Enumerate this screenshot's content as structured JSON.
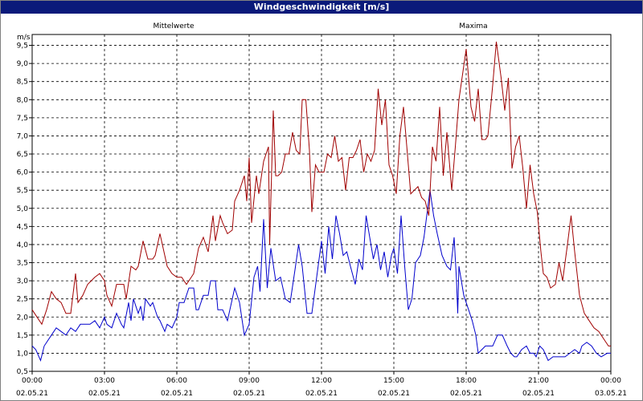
{
  "window": {
    "title": "Windgeschwindigkeit [m/s]"
  },
  "chart_data": {
    "type": "line",
    "title": "Windgeschwindigkeit [m/s]",
    "y_unit_label": "m/s",
    "ylim": [
      0.5,
      9.8
    ],
    "y_ticks": [
      0.5,
      1.0,
      1.5,
      2.0,
      2.5,
      3.0,
      3.5,
      4.0,
      4.5,
      5.0,
      5.5,
      6.0,
      6.5,
      7.0,
      7.5,
      8.0,
      8.5,
      9.0,
      9.5
    ],
    "y_tick_labels": [
      "0,5",
      "1,0",
      "1,5",
      "2,0",
      "2,5",
      "3,0",
      "3,5",
      "4,0",
      "4,5",
      "5,0",
      "5,5",
      "6,0",
      "6,5",
      "7,0",
      "7,5",
      "8,0",
      "8,5",
      "9,0",
      "9,5"
    ],
    "x_range_hours": [
      0,
      24
    ],
    "x_ticks": [
      {
        "hour": 0,
        "time": "00:00",
        "date": "02.05.21"
      },
      {
        "hour": 3,
        "time": "03:00",
        "date": "02.05.21"
      },
      {
        "hour": 6,
        "time": "06:00",
        "date": "02.05.21"
      },
      {
        "hour": 9,
        "time": "09:00",
        "date": "02.05.21"
      },
      {
        "hour": 12,
        "time": "12:00",
        "date": "02.05.21"
      },
      {
        "hour": 15,
        "time": "15:00",
        "date": "02.05.21"
      },
      {
        "hour": 18,
        "time": "18:00",
        "date": "02.05.21"
      },
      {
        "hour": 21,
        "time": "21:00",
        "date": "02.05.21"
      },
      {
        "hour": 24,
        "time": "00:00",
        "date": "03.05.21"
      }
    ],
    "grid": true,
    "series": [
      {
        "name": "Mittelwerte",
        "color": "#0000cc",
        "points": [
          [
            0.0,
            1.2
          ],
          [
            0.15,
            1.1
          ],
          [
            0.35,
            0.8
          ],
          [
            0.5,
            1.2
          ],
          [
            0.8,
            1.5
          ],
          [
            1.0,
            1.7
          ],
          [
            1.2,
            1.6
          ],
          [
            1.4,
            1.5
          ],
          [
            1.6,
            1.7
          ],
          [
            1.8,
            1.6
          ],
          [
            2.0,
            1.8
          ],
          [
            2.2,
            1.8
          ],
          [
            2.4,
            1.8
          ],
          [
            2.6,
            1.9
          ],
          [
            2.8,
            1.7
          ],
          [
            3.0,
            2.0
          ],
          [
            3.1,
            1.8
          ],
          [
            3.3,
            1.7
          ],
          [
            3.5,
            2.1
          ],
          [
            3.7,
            1.8
          ],
          [
            3.8,
            1.7
          ],
          [
            4.0,
            2.4
          ],
          [
            4.1,
            1.9
          ],
          [
            4.2,
            2.5
          ],
          [
            4.4,
            2.1
          ],
          [
            4.5,
            2.3
          ],
          [
            4.6,
            1.9
          ],
          [
            4.7,
            2.5
          ],
          [
            4.9,
            2.3
          ],
          [
            5.0,
            2.4
          ],
          [
            5.2,
            2.0
          ],
          [
            5.3,
            1.9
          ],
          [
            5.5,
            1.6
          ],
          [
            5.6,
            1.8
          ],
          [
            5.8,
            1.7
          ],
          [
            6.0,
            2.0
          ],
          [
            6.1,
            2.4
          ],
          [
            6.3,
            2.4
          ],
          [
            6.5,
            2.8
          ],
          [
            6.7,
            2.8
          ],
          [
            6.8,
            2.2
          ],
          [
            6.9,
            2.2
          ],
          [
            7.1,
            2.6
          ],
          [
            7.3,
            2.6
          ],
          [
            7.4,
            3.0
          ],
          [
            7.6,
            3.0
          ],
          [
            7.7,
            2.2
          ],
          [
            7.9,
            2.2
          ],
          [
            8.1,
            1.9
          ],
          [
            8.4,
            2.8
          ],
          [
            8.6,
            2.4
          ],
          [
            8.8,
            1.5
          ],
          [
            9.0,
            1.8
          ],
          [
            9.2,
            3.1
          ],
          [
            9.35,
            3.4
          ],
          [
            9.45,
            2.7
          ],
          [
            9.6,
            4.7
          ],
          [
            9.75,
            2.8
          ],
          [
            9.9,
            3.9
          ],
          [
            10.1,
            3.0
          ],
          [
            10.3,
            3.1
          ],
          [
            10.5,
            2.5
          ],
          [
            10.7,
            2.4
          ],
          [
            10.9,
            3.3
          ],
          [
            11.05,
            4.0
          ],
          [
            11.2,
            3.4
          ],
          [
            11.4,
            2.1
          ],
          [
            11.6,
            2.1
          ],
          [
            11.8,
            3.1
          ],
          [
            12.0,
            4.1
          ],
          [
            12.15,
            3.2
          ],
          [
            12.3,
            4.5
          ],
          [
            12.45,
            3.6
          ],
          [
            12.6,
            4.8
          ],
          [
            12.75,
            4.3
          ],
          [
            12.9,
            3.7
          ],
          [
            13.05,
            3.8
          ],
          [
            13.2,
            3.4
          ],
          [
            13.4,
            2.9
          ],
          [
            13.55,
            3.6
          ],
          [
            13.7,
            3.3
          ],
          [
            13.85,
            4.8
          ],
          [
            14.0,
            4.2
          ],
          [
            14.15,
            3.6
          ],
          [
            14.3,
            4.0
          ],
          [
            14.45,
            3.3
          ],
          [
            14.6,
            3.8
          ],
          [
            14.75,
            3.1
          ],
          [
            14.9,
            3.7
          ],
          [
            15.0,
            3.9
          ],
          [
            15.15,
            3.2
          ],
          [
            15.3,
            4.8
          ],
          [
            15.45,
            3.4
          ],
          [
            15.6,
            2.2
          ],
          [
            15.75,
            2.5
          ],
          [
            15.9,
            3.5
          ],
          [
            16.1,
            3.7
          ],
          [
            16.25,
            4.2
          ],
          [
            16.5,
            5.5
          ],
          [
            16.65,
            4.8
          ],
          [
            16.8,
            4.3
          ],
          [
            17.0,
            3.7
          ],
          [
            17.2,
            3.4
          ],
          [
            17.35,
            3.3
          ],
          [
            17.5,
            4.2
          ],
          [
            17.6,
            3.0
          ],
          [
            17.65,
            2.1
          ],
          [
            17.7,
            3.4
          ],
          [
            17.9,
            2.6
          ],
          [
            18.1,
            2.2
          ],
          [
            18.25,
            1.9
          ],
          [
            18.4,
            1.5
          ],
          [
            18.5,
            1.0
          ],
          [
            18.8,
            1.2
          ],
          [
            19.1,
            1.2
          ],
          [
            19.3,
            1.5
          ],
          [
            19.5,
            1.5
          ],
          [
            19.7,
            1.2
          ],
          [
            19.85,
            1.0
          ],
          [
            20.0,
            0.9
          ],
          [
            20.1,
            0.9
          ],
          [
            20.3,
            1.1
          ],
          [
            20.5,
            1.2
          ],
          [
            20.65,
            1.0
          ],
          [
            20.8,
            1.0
          ],
          [
            20.9,
            0.9
          ],
          [
            21.05,
            1.2
          ],
          [
            21.2,
            1.1
          ],
          [
            21.4,
            0.8
          ],
          [
            21.6,
            0.9
          ],
          [
            21.8,
            0.9
          ],
          [
            22.1,
            0.9
          ],
          [
            22.3,
            1.0
          ],
          [
            22.5,
            1.1
          ],
          [
            22.7,
            1.0
          ],
          [
            22.8,
            1.2
          ],
          [
            23.0,
            1.3
          ],
          [
            23.2,
            1.2
          ],
          [
            23.4,
            1.0
          ],
          [
            23.6,
            0.9
          ],
          [
            23.85,
            1.0
          ],
          [
            24.0,
            1.0
          ]
        ]
      },
      {
        "name": "Maxima",
        "color": "#a00000",
        "points": [
          [
            0.0,
            2.2
          ],
          [
            0.2,
            2.0
          ],
          [
            0.4,
            1.8
          ],
          [
            0.6,
            2.2
          ],
          [
            0.8,
            2.7
          ],
          [
            1.0,
            2.5
          ],
          [
            1.2,
            2.4
          ],
          [
            1.4,
            2.1
          ],
          [
            1.6,
            2.1
          ],
          [
            1.8,
            3.2
          ],
          [
            1.9,
            2.4
          ],
          [
            2.1,
            2.6
          ],
          [
            2.3,
            2.9
          ],
          [
            2.6,
            3.1
          ],
          [
            2.8,
            3.2
          ],
          [
            3.0,
            3.0
          ],
          [
            3.1,
            2.6
          ],
          [
            3.3,
            2.3
          ],
          [
            3.5,
            2.9
          ],
          [
            3.8,
            2.9
          ],
          [
            3.9,
            2.5
          ],
          [
            4.1,
            3.4
          ],
          [
            4.3,
            3.3
          ],
          [
            4.4,
            3.4
          ],
          [
            4.6,
            4.1
          ],
          [
            4.8,
            3.6
          ],
          [
            5.0,
            3.6
          ],
          [
            5.1,
            3.7
          ],
          [
            5.3,
            4.3
          ],
          [
            5.5,
            3.7
          ],
          [
            5.6,
            3.4
          ],
          [
            5.8,
            3.2
          ],
          [
            6.0,
            3.1
          ],
          [
            6.2,
            3.1
          ],
          [
            6.4,
            2.9
          ],
          [
            6.5,
            3.0
          ],
          [
            6.7,
            3.2
          ],
          [
            6.9,
            3.9
          ],
          [
            7.1,
            4.2
          ],
          [
            7.3,
            3.8
          ],
          [
            7.5,
            4.8
          ],
          [
            7.6,
            4.1
          ],
          [
            7.8,
            4.8
          ],
          [
            7.9,
            4.6
          ],
          [
            8.1,
            4.3
          ],
          [
            8.3,
            4.4
          ],
          [
            8.4,
            5.2
          ],
          [
            8.6,
            5.5
          ],
          [
            8.8,
            5.9
          ],
          [
            8.9,
            5.2
          ],
          [
            9.0,
            6.4
          ],
          [
            9.1,
            4.6
          ],
          [
            9.3,
            5.9
          ],
          [
            9.4,
            5.4
          ],
          [
            9.6,
            6.3
          ],
          [
            9.8,
            6.7
          ],
          [
            9.85,
            4.0
          ],
          [
            10.0,
            7.7
          ],
          [
            10.1,
            5.9
          ],
          [
            10.2,
            5.9
          ],
          [
            10.35,
            6.0
          ],
          [
            10.5,
            6.5
          ],
          [
            10.65,
            6.5
          ],
          [
            10.8,
            7.1
          ],
          [
            10.95,
            6.6
          ],
          [
            11.1,
            6.5
          ],
          [
            11.2,
            8.0
          ],
          [
            11.35,
            8.0
          ],
          [
            11.5,
            6.6
          ],
          [
            11.6,
            4.9
          ],
          [
            11.75,
            6.2
          ],
          [
            11.9,
            6.0
          ],
          [
            12.1,
            6.0
          ],
          [
            12.25,
            6.5
          ],
          [
            12.4,
            6.4
          ],
          [
            12.55,
            7.0
          ],
          [
            12.7,
            6.3
          ],
          [
            12.85,
            6.4
          ],
          [
            13.0,
            5.5
          ],
          [
            13.15,
            6.4
          ],
          [
            13.3,
            6.4
          ],
          [
            13.45,
            6.6
          ],
          [
            13.6,
            6.9
          ],
          [
            13.75,
            6.0
          ],
          [
            13.9,
            6.5
          ],
          [
            14.05,
            6.3
          ],
          [
            14.2,
            6.6
          ],
          [
            14.35,
            8.3
          ],
          [
            14.5,
            7.3
          ],
          [
            14.65,
            8.0
          ],
          [
            14.8,
            6.2
          ],
          [
            14.95,
            5.9
          ],
          [
            15.1,
            5.4
          ],
          [
            15.25,
            7.0
          ],
          [
            15.4,
            7.8
          ],
          [
            15.55,
            6.6
          ],
          [
            15.7,
            5.4
          ],
          [
            15.85,
            5.5
          ],
          [
            16.0,
            5.6
          ],
          [
            16.15,
            5.3
          ],
          [
            16.3,
            5.2
          ],
          [
            16.45,
            4.8
          ],
          [
            16.6,
            6.7
          ],
          [
            16.75,
            6.3
          ],
          [
            16.9,
            7.8
          ],
          [
            17.05,
            5.9
          ],
          [
            17.2,
            7.1
          ],
          [
            17.4,
            5.5
          ],
          [
            17.55,
            6.7
          ],
          [
            17.7,
            8.0
          ],
          [
            17.85,
            8.7
          ],
          [
            18.0,
            9.4
          ],
          [
            18.2,
            7.8
          ],
          [
            18.35,
            7.4
          ],
          [
            18.5,
            8.3
          ],
          [
            18.65,
            6.9
          ],
          [
            18.8,
            6.9
          ],
          [
            18.9,
            7.0
          ],
          [
            19.1,
            8.4
          ],
          [
            19.25,
            9.6
          ],
          [
            19.45,
            8.6
          ],
          [
            19.6,
            7.7
          ],
          [
            19.75,
            8.6
          ],
          [
            19.9,
            6.1
          ],
          [
            20.05,
            6.7
          ],
          [
            20.2,
            7.0
          ],
          [
            20.35,
            6.1
          ],
          [
            20.5,
            5.0
          ],
          [
            20.65,
            6.2
          ],
          [
            20.8,
            5.4
          ],
          [
            20.95,
            4.9
          ],
          [
            21.1,
            3.8
          ],
          [
            21.2,
            3.2
          ],
          [
            21.35,
            3.1
          ],
          [
            21.5,
            2.8
          ],
          [
            21.7,
            2.9
          ],
          [
            21.85,
            3.5
          ],
          [
            22.0,
            3.0
          ],
          [
            22.2,
            4.0
          ],
          [
            22.35,
            4.8
          ],
          [
            22.5,
            3.8
          ],
          [
            22.7,
            2.6
          ],
          [
            22.9,
            2.1
          ],
          [
            23.1,
            1.9
          ],
          [
            23.3,
            1.7
          ],
          [
            23.5,
            1.6
          ],
          [
            23.7,
            1.4
          ],
          [
            23.9,
            1.2
          ],
          [
            24.0,
            1.2
          ]
        ]
      }
    ]
  }
}
